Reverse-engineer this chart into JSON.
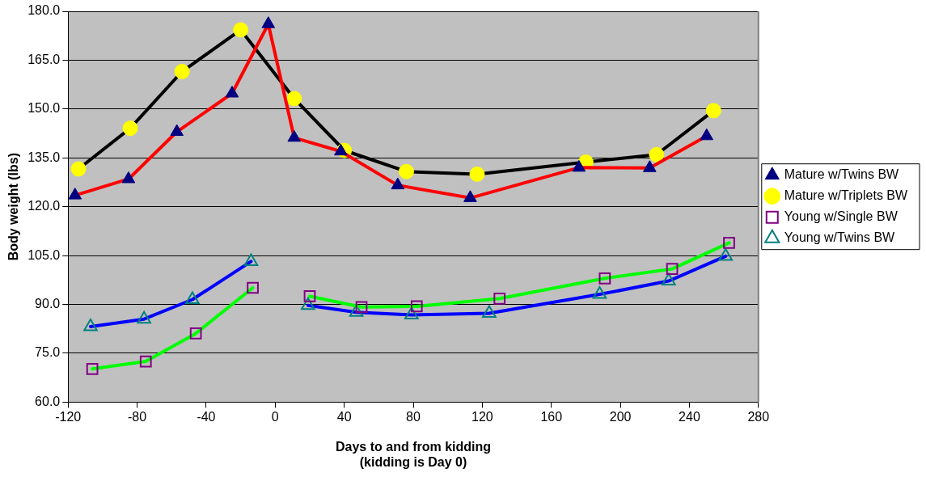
{
  "chart_data": {
    "type": "line",
    "xlabel": "Days to and from kidding\n(kidding is Day 0)",
    "ylabel": "Body weight (lbs)",
    "xlim": [
      -120,
      280
    ],
    "xticks": [
      -120,
      -80,
      -40,
      0,
      40,
      80,
      120,
      160,
      200,
      240,
      280
    ],
    "ylim": [
      60,
      180
    ],
    "yticks": [
      {
        "value": 60,
        "label": "60.0"
      },
      {
        "value": 75,
        "label": "75.0"
      },
      {
        "value": 90,
        "label": "90.0"
      },
      {
        "value": 105,
        "label": "105.0"
      },
      {
        "value": 120,
        "label": "120.0"
      },
      {
        "value": 135,
        "label": "135.0"
      },
      {
        "value": 150,
        "label": "150.0"
      },
      {
        "value": 165,
        "label": "165.0"
      },
      {
        "value": 180,
        "label": "180.0"
      }
    ],
    "grid": "y",
    "legend": "right",
    "line_style": "solid",
    "series": [
      {
        "name": "Mature w/Twins BW",
        "color": "#ff0000",
        "marker": "triangle",
        "x": [
          -116,
          -85,
          -57,
          -25,
          -4,
          11,
          38,
          71,
          113,
          176,
          217,
          250
        ],
        "values": [
          123.5,
          128.5,
          143,
          154.8,
          176.1,
          141.2,
          137,
          126.6,
          122.7,
          132,
          131.9,
          141.7
        ]
      },
      {
        "name": "Mature w/Triplets BW",
        "color": "#000000",
        "marker": "circle",
        "x": [
          -114,
          -84,
          -54,
          -20,
          11,
          40,
          76,
          117,
          180,
          221,
          254
        ],
        "values": [
          131.6,
          144.1,
          161.5,
          174.3,
          153.2,
          137.3,
          130.8,
          130,
          133.7,
          136,
          149.5
        ]
      },
      {
        "name": "Young w/Single BW",
        "color": "#00ff00",
        "marker": "square",
        "x": [
          -106,
          -75,
          -46,
          -13,
          3,
          20,
          50,
          82,
          130,
          191,
          230,
          263
        ],
        "values": [
          70.2,
          72.5,
          81.1,
          95.1,
          null,
          92.5,
          89.2,
          89.4,
          91.8,
          98,
          100.9,
          108.9
        ]
      },
      {
        "name": "Young w/Twins BW",
        "color": "#0000ff",
        "marker": "triangle",
        "x": [
          -107,
          -76,
          -48,
          -14,
          3,
          19,
          47,
          79,
          124,
          188,
          228,
          261
        ],
        "values": [
          83.2,
          85.5,
          91.5,
          103.2,
          null,
          89.7,
          87.6,
          86.8,
          87.3,
          93.1,
          97.2,
          104.8
        ]
      }
    ]
  }
}
